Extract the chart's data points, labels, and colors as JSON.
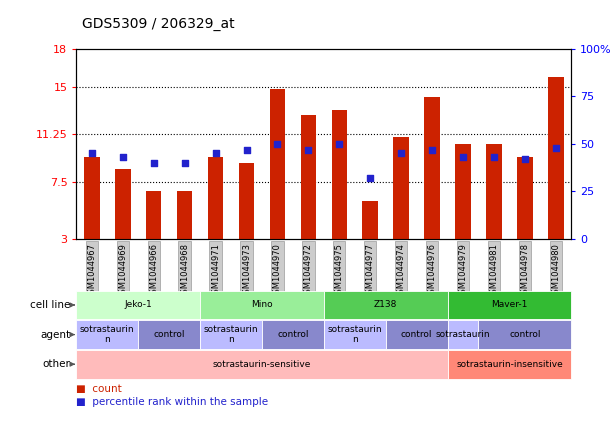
{
  "title": "GDS5309 / 206329_at",
  "samples": [
    "GSM1044967",
    "GSM1044969",
    "GSM1044966",
    "GSM1044968",
    "GSM1044971",
    "GSM1044973",
    "GSM1044970",
    "GSM1044972",
    "GSM1044975",
    "GSM1044977",
    "GSM1044974",
    "GSM1044976",
    "GSM1044979",
    "GSM1044981",
    "GSM1044978",
    "GSM1044980"
  ],
  "bar_heights": [
    9.5,
    8.5,
    6.8,
    6.8,
    9.5,
    9.0,
    14.8,
    12.8,
    13.2,
    6.0,
    11.0,
    14.2,
    10.5,
    10.5,
    9.5,
    15.8
  ],
  "percentiles": [
    45,
    43,
    40,
    40,
    45,
    47,
    50,
    47,
    50,
    32,
    45,
    47,
    43,
    43,
    42,
    48
  ],
  "ymin": 3,
  "ymax": 18,
  "yticks": [
    3,
    7.5,
    11.25,
    15,
    18
  ],
  "ytick_labels": [
    "3",
    "7.5",
    "11.25",
    "15",
    "18"
  ],
  "right_yticks": [
    0,
    25,
    50,
    75,
    100
  ],
  "right_ytick_labels": [
    "0",
    "25",
    "50",
    "75",
    "100%"
  ],
  "bar_color": "#CC2200",
  "dot_color": "#2222CC",
  "bar_width": 0.5,
  "cell_line_groups": [
    {
      "label": "Jeko-1",
      "start": 0,
      "end": 3,
      "color": "#CCFFCC"
    },
    {
      "label": "Mino",
      "start": 4,
      "end": 7,
      "color": "#99EE99"
    },
    {
      "label": "Z138",
      "start": 8,
      "end": 11,
      "color": "#55CC55"
    },
    {
      "label": "Maver-1",
      "start": 12,
      "end": 15,
      "color": "#33BB33"
    }
  ],
  "agent_groups": [
    {
      "label": "sotrastaurin\nn",
      "start": 0,
      "end": 1,
      "color": "#BBBBFF"
    },
    {
      "label": "control",
      "start": 2,
      "end": 3,
      "color": "#8888CC"
    },
    {
      "label": "sotrastaurin\nn",
      "start": 4,
      "end": 5,
      "color": "#BBBBFF"
    },
    {
      "label": "control",
      "start": 6,
      "end": 7,
      "color": "#8888CC"
    },
    {
      "label": "sotrastaurin\nn",
      "start": 8,
      "end": 9,
      "color": "#BBBBFF"
    },
    {
      "label": "control",
      "start": 10,
      "end": 11,
      "color": "#8888CC"
    },
    {
      "label": "sotrastaurin",
      "start": 12,
      "end": 12,
      "color": "#BBBBFF"
    },
    {
      "label": "control",
      "start": 13,
      "end": 15,
      "color": "#8888CC"
    }
  ],
  "other_groups": [
    {
      "label": "sotrastaurin-sensitive",
      "start": 0,
      "end": 11,
      "color": "#FFBBBB"
    },
    {
      "label": "sotrastaurin-insensitive",
      "start": 12,
      "end": 15,
      "color": "#FF8877"
    }
  ],
  "row_labels": [
    "cell line",
    "agent",
    "other"
  ]
}
